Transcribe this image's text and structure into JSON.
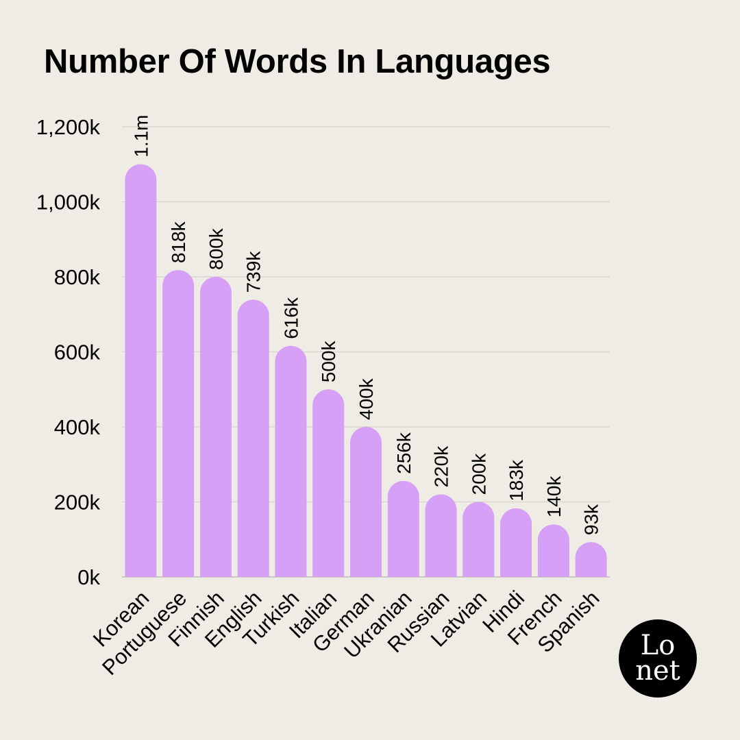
{
  "chart_data": {
    "type": "bar",
    "title": "Number Of Words In Languages",
    "categories": [
      "Korean",
      "Portuguese",
      "Finnish",
      "English",
      "Turkish",
      "Italian",
      "German",
      "Ukranian",
      "Russian",
      "Latvian",
      "Hindi",
      "French",
      "Spanish"
    ],
    "values": [
      1100000,
      818000,
      800000,
      739000,
      616000,
      500000,
      400000,
      256000,
      220000,
      200000,
      183000,
      140000,
      93000
    ],
    "data_labels": [
      "1.1m",
      "818k",
      "800k",
      "739k",
      "616k",
      "500k",
      "400k",
      "256k",
      "220k",
      "200k",
      "183k",
      "140k",
      "93k"
    ],
    "yticks": [
      "0k",
      "200k",
      "400k",
      "600k",
      "800k",
      "1,000k",
      "1,200k"
    ],
    "ytick_values": [
      0,
      200000,
      400000,
      600000,
      800000,
      1000000,
      1200000
    ],
    "ylim": [
      0,
      1200000
    ],
    "grid": true,
    "bar_color": "#d5a0f5",
    "grid_color": "#d6d2cc",
    "axis_color": "#bdbab4"
  },
  "logo": {
    "line1": "Lo",
    "line2": "net"
  }
}
